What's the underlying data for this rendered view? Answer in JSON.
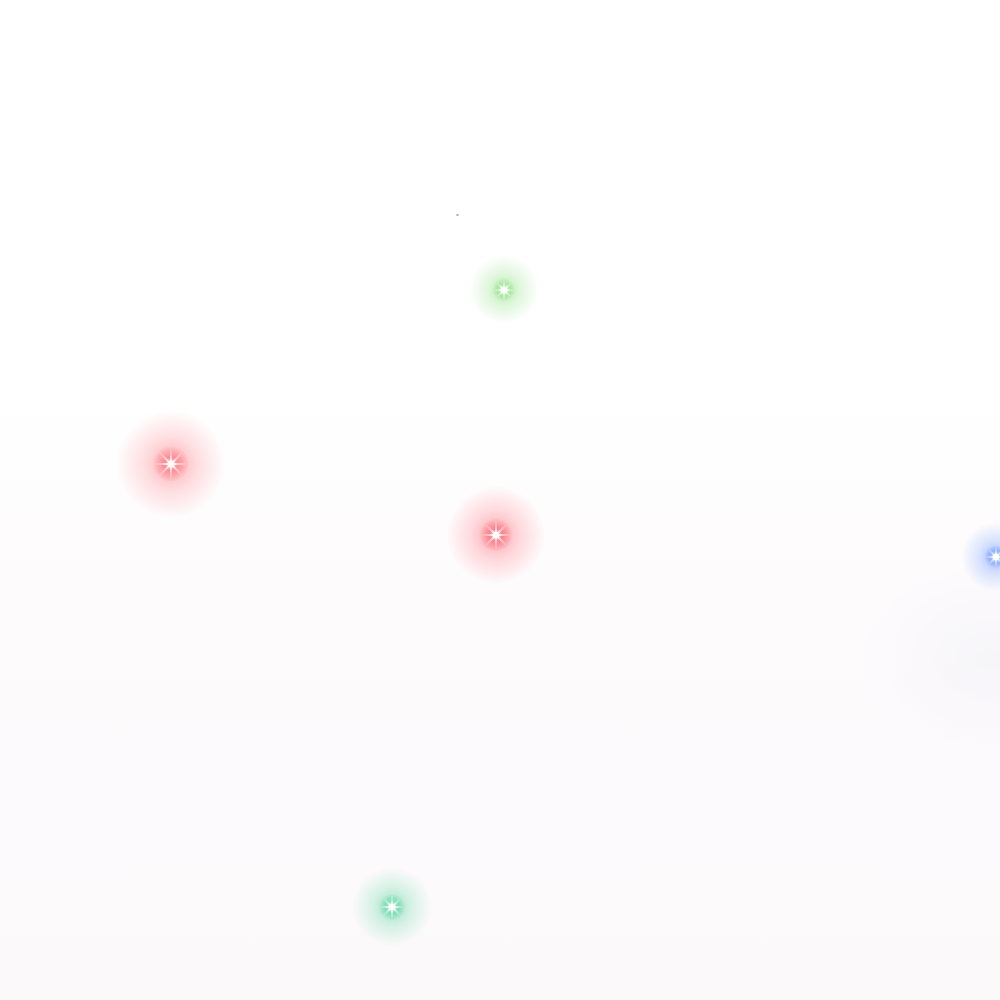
{
  "sparkles": [
    {
      "name": "green-sparkle-top",
      "color": "#7ddc6e"
    },
    {
      "name": "red-sparkle-left",
      "color": "#ff6f7a"
    },
    {
      "name": "red-sparkle-center",
      "color": "#ff5d6c"
    },
    {
      "name": "blue-sparkle-right",
      "color": "#5a8dff"
    },
    {
      "name": "teal-sparkle-bottom",
      "color": "#4fd39a"
    }
  ]
}
